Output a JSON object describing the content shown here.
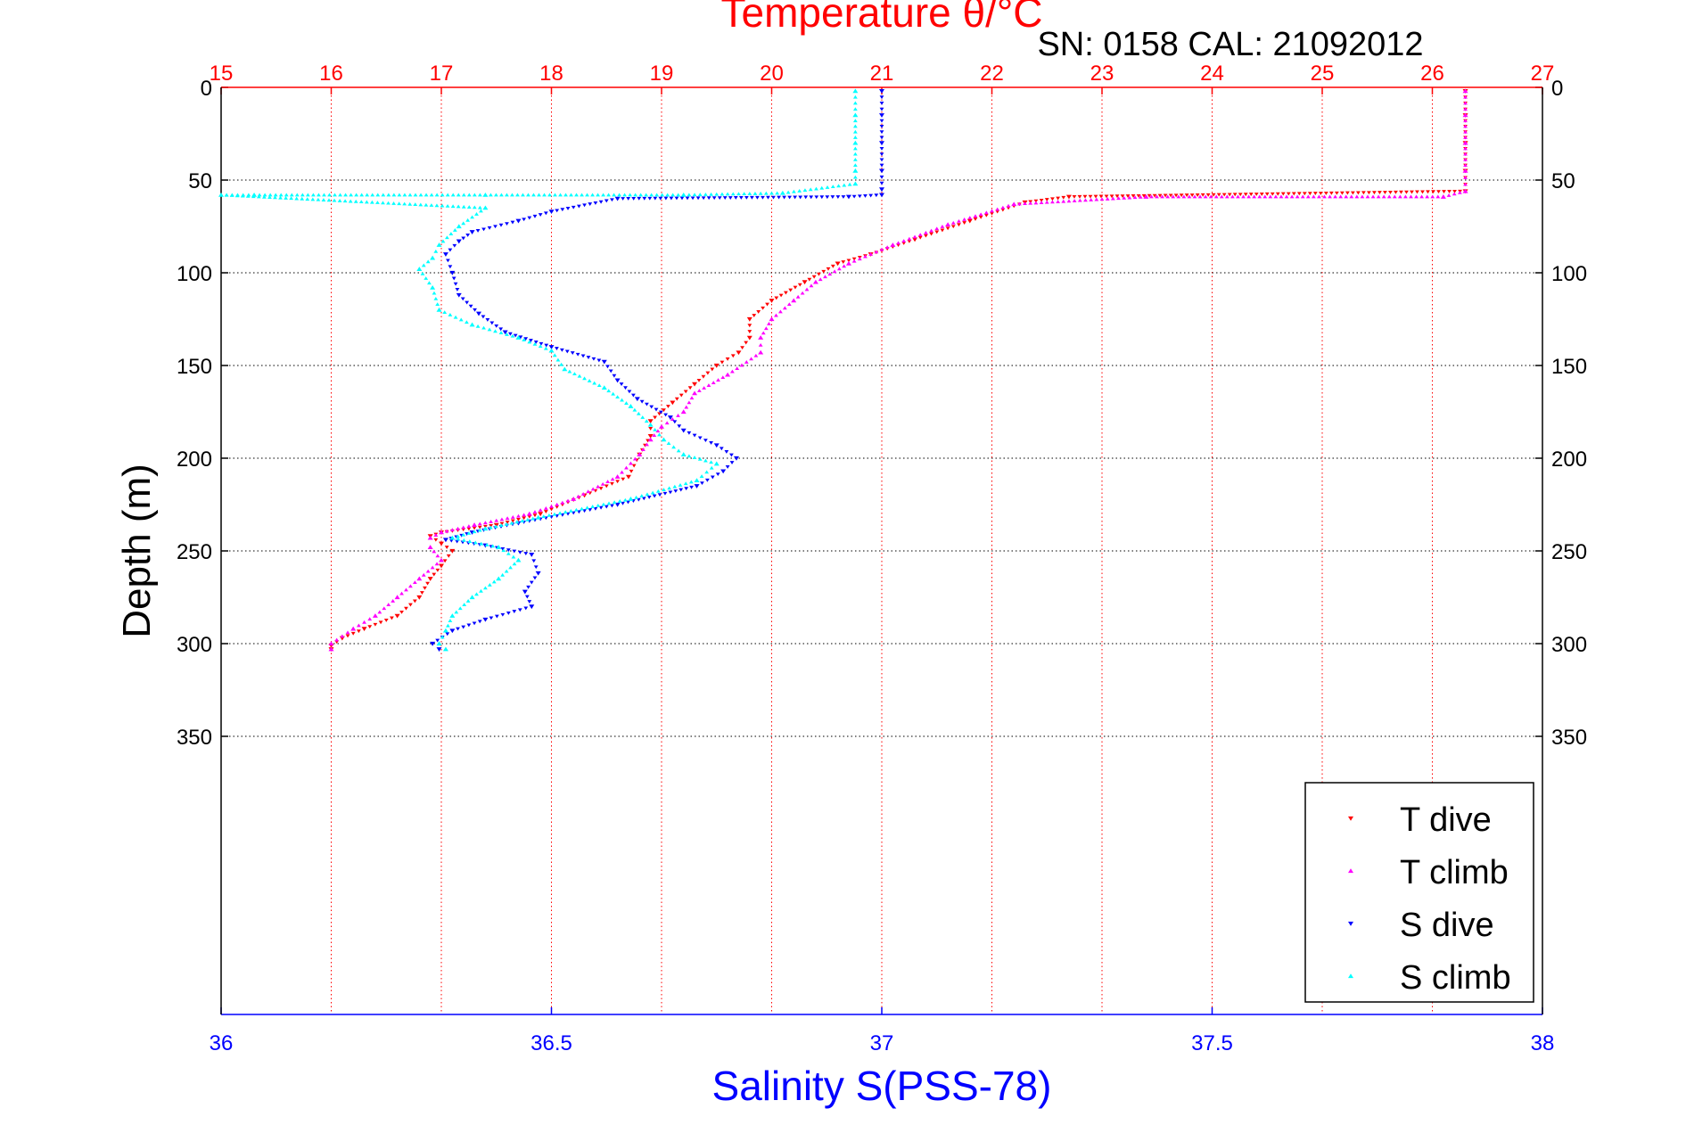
{
  "chart_data": {
    "type": "scatter",
    "top_title": "Temperature θ/°C",
    "annotation": "SN: 0158  CAL: 21092012",
    "ylabel": "Depth (m)",
    "xlabel": "Salinity S(PSS-78)",
    "temperature_axis": {
      "lim": [
        15,
        27
      ],
      "ticks": [
        "15",
        "16",
        "17",
        "18",
        "19",
        "20",
        "21",
        "22",
        "23",
        "24",
        "25",
        "26",
        "27"
      ],
      "color": "#ff0000"
    },
    "salinity_axis": {
      "lim": [
        36,
        38
      ],
      "ticks": [
        "36",
        "36.5",
        "37",
        "37.5",
        "38"
      ],
      "color": "#0000ff"
    },
    "depth_axis": {
      "lim": [
        0,
        500
      ],
      "reversed": true,
      "ticks": [
        "0",
        "50",
        "100",
        "150",
        "200",
        "250",
        "300",
        "350"
      ]
    },
    "grid": true,
    "legend_position": "bottom-right",
    "series": [
      {
        "name": "T dive",
        "axis": "temperature",
        "color": "#ff0000",
        "marker": "triangle-down",
        "points": [
          [
            26.3,
            2
          ],
          [
            26.3,
            15
          ],
          [
            26.3,
            30
          ],
          [
            26.3,
            45
          ],
          [
            26.3,
            56
          ],
          [
            22.7,
            59
          ],
          [
            22.3,
            62
          ],
          [
            21.8,
            72
          ],
          [
            21.3,
            82
          ],
          [
            20.9,
            90
          ],
          [
            20.6,
            95
          ],
          [
            20.3,
            105
          ],
          [
            20.0,
            115
          ],
          [
            19.8,
            125
          ],
          [
            19.8,
            135
          ],
          [
            19.7,
            143
          ],
          [
            19.5,
            150
          ],
          [
            19.3,
            160
          ],
          [
            19.1,
            170
          ],
          [
            18.9,
            180
          ],
          [
            18.9,
            188
          ],
          [
            18.8,
            198
          ],
          [
            18.7,
            210
          ],
          [
            18.3,
            220
          ],
          [
            17.9,
            230
          ],
          [
            17.5,
            236
          ],
          [
            17.0,
            240
          ],
          [
            16.9,
            242
          ],
          [
            17.0,
            246
          ],
          [
            17.1,
            250
          ],
          [
            17.0,
            258
          ],
          [
            16.9,
            265
          ],
          [
            16.8,
            275
          ],
          [
            16.6,
            285
          ],
          [
            16.3,
            292
          ],
          [
            16.1,
            297
          ],
          [
            16.0,
            301
          ],
          [
            16.0,
            303
          ]
        ]
      },
      {
        "name": "T climb",
        "axis": "temperature",
        "color": "#ff00ff",
        "marker": "triangle-up",
        "points": [
          [
            26.3,
            2
          ],
          [
            26.3,
            15
          ],
          [
            26.3,
            30
          ],
          [
            26.3,
            45
          ],
          [
            26.3,
            56
          ],
          [
            26.1,
            59
          ],
          [
            23.4,
            59
          ],
          [
            22.2,
            63
          ],
          [
            21.6,
            74
          ],
          [
            21.1,
            85
          ],
          [
            20.7,
            95
          ],
          [
            20.4,
            105
          ],
          [
            20.2,
            115
          ],
          [
            20.0,
            125
          ],
          [
            19.9,
            135
          ],
          [
            19.9,
            143
          ],
          [
            19.6,
            155
          ],
          [
            19.3,
            165
          ],
          [
            19.2,
            175
          ],
          [
            19.0,
            183
          ],
          [
            18.9,
            190
          ],
          [
            18.8,
            198
          ],
          [
            18.6,
            210
          ],
          [
            18.2,
            222
          ],
          [
            17.8,
            230
          ],
          [
            17.3,
            236
          ],
          [
            17.0,
            240
          ],
          [
            16.9,
            243
          ],
          [
            16.9,
            248
          ],
          [
            17.0,
            255
          ],
          [
            16.8,
            265
          ],
          [
            16.6,
            275
          ],
          [
            16.4,
            285
          ],
          [
            16.2,
            292
          ],
          [
            16.0,
            300
          ],
          [
            16.0,
            303
          ]
        ]
      },
      {
        "name": "S dive",
        "axis": "salinity",
        "color": "#0000ff",
        "marker": "triangle-down",
        "points": [
          [
            37.0,
            2
          ],
          [
            37.0,
            15
          ],
          [
            37.0,
            30
          ],
          [
            37.0,
            45
          ],
          [
            37.0,
            55
          ],
          [
            37.0,
            58
          ],
          [
            36.95,
            59
          ],
          [
            36.6,
            60
          ],
          [
            36.5,
            67
          ],
          [
            36.45,
            72
          ],
          [
            36.38,
            78
          ],
          [
            36.36,
            83
          ],
          [
            36.34,
            90
          ],
          [
            36.35,
            100
          ],
          [
            36.36,
            112
          ],
          [
            36.39,
            122
          ],
          [
            36.43,
            132
          ],
          [
            36.5,
            140
          ],
          [
            36.58,
            148
          ],
          [
            36.6,
            158
          ],
          [
            36.63,
            168
          ],
          [
            36.68,
            178
          ],
          [
            36.7,
            185
          ],
          [
            36.75,
            193
          ],
          [
            36.78,
            200
          ],
          [
            36.76,
            207
          ],
          [
            36.72,
            215
          ],
          [
            36.6,
            225
          ],
          [
            36.45,
            235
          ],
          [
            36.38,
            240
          ],
          [
            36.34,
            244
          ],
          [
            36.4,
            247
          ],
          [
            36.47,
            252
          ],
          [
            36.48,
            262
          ],
          [
            36.46,
            272
          ],
          [
            36.47,
            280
          ],
          [
            36.4,
            287
          ],
          [
            36.35,
            293
          ],
          [
            36.32,
            300
          ],
          [
            36.33,
            303
          ]
        ]
      },
      {
        "name": "S climb",
        "axis": "salinity",
        "color": "#00ffff",
        "marker": "triangle-up",
        "points": [
          [
            36.96,
            2
          ],
          [
            36.96,
            15
          ],
          [
            36.96,
            30
          ],
          [
            36.96,
            45
          ],
          [
            36.96,
            52
          ],
          [
            36.85,
            57
          ],
          [
            36.7,
            58
          ],
          [
            36.4,
            58
          ],
          [
            36.05,
            58
          ],
          [
            36.0,
            58
          ],
          [
            36.4,
            65
          ],
          [
            36.36,
            75
          ],
          [
            36.33,
            85
          ],
          [
            36.32,
            92
          ],
          [
            36.3,
            98
          ],
          [
            36.32,
            108
          ],
          [
            36.33,
            120
          ],
          [
            36.38,
            128
          ],
          [
            36.45,
            135
          ],
          [
            36.5,
            142
          ],
          [
            36.52,
            152
          ],
          [
            36.58,
            162
          ],
          [
            36.62,
            172
          ],
          [
            36.65,
            182
          ],
          [
            36.67,
            190
          ],
          [
            36.7,
            198
          ],
          [
            36.75,
            203
          ],
          [
            36.72,
            212
          ],
          [
            36.62,
            222
          ],
          [
            36.48,
            232
          ],
          [
            36.4,
            238
          ],
          [
            36.35,
            243
          ],
          [
            36.42,
            248
          ],
          [
            36.45,
            255
          ],
          [
            36.42,
            265
          ],
          [
            36.38,
            275
          ],
          [
            36.35,
            285
          ],
          [
            36.34,
            293
          ],
          [
            36.33,
            300
          ],
          [
            36.34,
            303
          ]
        ]
      }
    ]
  }
}
